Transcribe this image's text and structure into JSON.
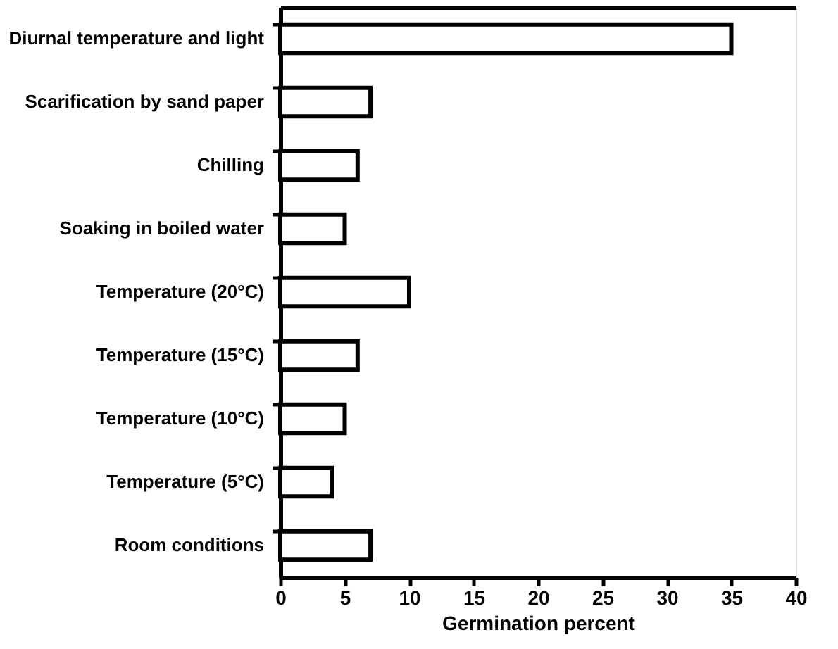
{
  "chart_data": {
    "type": "bar",
    "orientation": "horizontal",
    "xlabel": "Germination percent",
    "categories": [
      "Diurnal temperature and light",
      "Scarification by sand paper",
      "Chilling",
      "Soaking in boiled water",
      "Temperature (20°C)",
      "Temperature (15°C)",
      "Temperature (10°C)",
      "Temperature (5°C)",
      "Room conditions"
    ],
    "values": [
      35,
      7,
      6,
      5,
      10,
      6,
      5,
      4,
      7
    ],
    "color": "#ffffff",
    "xlim": [
      0,
      40
    ],
    "xticks": [
      0,
      5,
      10,
      15,
      20,
      25,
      30,
      35,
      40
    ],
    "grid": false
  }
}
